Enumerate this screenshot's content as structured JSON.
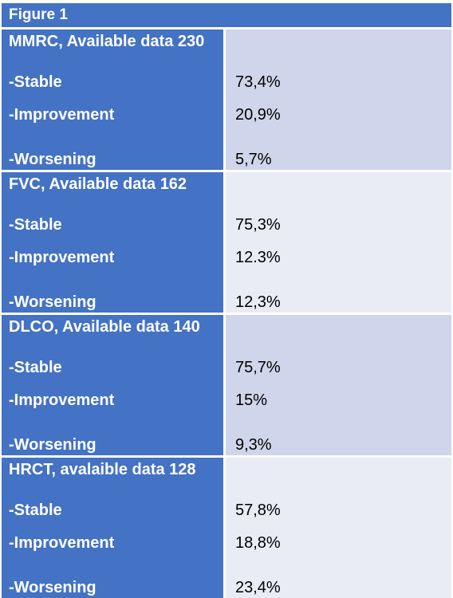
{
  "title": "Figure 1",
  "sections": [
    {
      "header": "MMRC, Available data 230",
      "rows": [
        {
          "label": "-Stable",
          "value": "73,4%"
        },
        {
          "label": "-Improvement",
          "value": "20,9%"
        },
        {
          "label": "-Worsening",
          "value": "5,7%"
        }
      ]
    },
    {
      "header": "FVC, Available data 162",
      "rows": [
        {
          "label": "-Stable",
          "value": "75,3%"
        },
        {
          "label": "-Improvement",
          "value": "12.3%"
        },
        {
          "label": "-Worsening",
          "value": "12,3%"
        }
      ]
    },
    {
      "header": "DLCO, Available data 140",
      "rows": [
        {
          "label": "-Stable",
          "value": "75,7%"
        },
        {
          "label": "-Improvement",
          "value": "15%"
        },
        {
          "label": "-Worsening",
          "value": "9,3%"
        }
      ]
    },
    {
      "header": "HRCT, avalaible data 128",
      "rows": [
        {
          "label": "-Stable",
          "value": "57,8%"
        },
        {
          "label": "-Improvement",
          "value": "18,8%"
        },
        {
          "label": "-Worsening",
          "value": "23,4%"
        }
      ]
    }
  ],
  "colors": {
    "header_blue": "#4472c4",
    "band_dark": "#cfd5ea",
    "band_light": "#e9ebf5"
  }
}
